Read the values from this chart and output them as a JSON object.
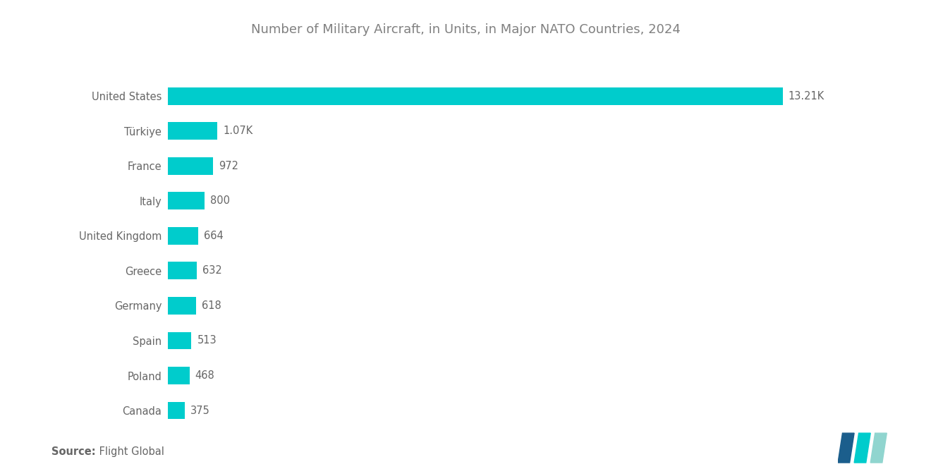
{
  "title": "Number of Military Aircraft, in Units, in Major NATO Countries, 2024",
  "countries": [
    "United States",
    "Türkiye",
    "France",
    "Italy",
    "United Kingdom",
    "Greece",
    "Germany",
    "Spain",
    "Poland",
    "Canada"
  ],
  "values": [
    13210,
    1070,
    972,
    800,
    664,
    632,
    618,
    513,
    468,
    375
  ],
  "labels": [
    "13.21K",
    "1.07K",
    "972",
    "800",
    "664",
    "632",
    "618",
    "513",
    "468",
    "375"
  ],
  "bar_color": "#00CCCC",
  "background_color": "#ffffff",
  "title_color": "#808080",
  "label_color": "#666666",
  "source_bold": "Source:",
  "source_text": " Flight Global",
  "title_fontsize": 13,
  "label_fontsize": 10.5,
  "ytick_fontsize": 10.5,
  "source_fontsize": 10.5,
  "logo_colors": [
    "#1B5E8C",
    "#00CCCC",
    "#90D5CF"
  ]
}
